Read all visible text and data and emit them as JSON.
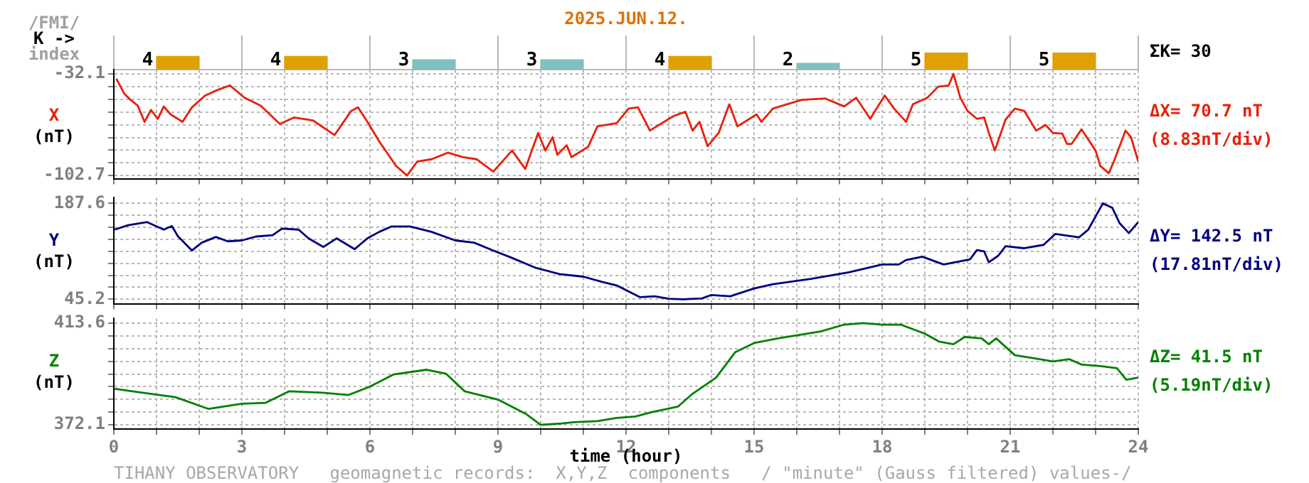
{
  "chart_data": [
    {
      "type": "bar",
      "title": "2025.JUN.12.",
      "ylabel": "/FMI/\nK ->\nindex",
      "annotations": [
        "ΣK= 30"
      ],
      "categories": [
        null,
        null,
        null,
        null,
        null,
        null,
        null,
        null
      ],
      "values": [
        4,
        4,
        3,
        3,
        4,
        2,
        5,
        5
      ],
      "colors": [
        "#e0a000",
        "#e0a000",
        "#80c0c0",
        "#80c0c0",
        "#e0a000",
        "#80c0c0",
        "#e0a000",
        "#e0a000"
      ],
      "data_labels": true,
      "grid": "x",
      "tick_labels": false,
      "legend": false
    },
    {
      "type": "line",
      "ylabel": "X\n(nT)",
      "annotations": [
        "ΔX= 70.7 nT",
        "(8.83nT/div)"
      ],
      "x": [
        0.06,
        0.24,
        0.39,
        0.56,
        0.72,
        0.87,
        1.03,
        1.17,
        1.33,
        1.61,
        1.83,
        2.14,
        2.44,
        2.72,
        3.06,
        3.44,
        3.89,
        4.22,
        4.67,
        5.17,
        5.56,
        5.72,
        5.94,
        6.22,
        6.61,
        6.87,
        7.11,
        7.44,
        7.83,
        8.17,
        8.5,
        8.89,
        9.33,
        9.64,
        9.94,
        10.11,
        10.28,
        10.39,
        10.61,
        10.72,
        11.11,
        11.33,
        11.78,
        12.06,
        12.28,
        12.56,
        12.67,
        13.11,
        13.39,
        13.56,
        13.72,
        13.91,
        14.17,
        14.42,
        14.61,
        15.06,
        15.17,
        15.44,
        16.11,
        16.67,
        17.11,
        17.39,
        17.72,
        18.06,
        18.28,
        18.56,
        18.72,
        19.06,
        19.31,
        19.56,
        19.67,
        19.83,
        20,
        20.22,
        20.39,
        20.5,
        20.64,
        20.89,
        21.11,
        21.33,
        21.61,
        21.83,
        22,
        22.22,
        22.33,
        22.44,
        22.67,
        23,
        23.11,
        23.31,
        23.44,
        23.7,
        23.83,
        24
      ],
      "series": [
        {
          "color": "#e8200a",
          "values": [
            -35.5,
            -45.6,
            -50.1,
            -54.1,
            -65.4,
            -57.1,
            -63.3,
            -54.7,
            -60.2,
            -65.4,
            -55.3,
            -47.1,
            -43.1,
            -40.1,
            -48.6,
            -54.1,
            -66.9,
            -62.4,
            -64.5,
            -74.6,
            -57.8,
            -55.3,
            -65.4,
            -79.1,
            -96.0,
            -102.7,
            -92.9,
            -91.4,
            -86.8,
            -89.9,
            -91.4,
            -100.0,
            -85.3,
            -98.1,
            -73.1,
            -85.3,
            -76.1,
            -88.3,
            -81.6,
            -89.9,
            -82.8,
            -68.5,
            -66.3,
            -56.2,
            -55.3,
            -71.5,
            -69.4,
            -61.4,
            -58.4,
            -71.5,
            -65.4,
            -82.3,
            -73.1,
            -53.2,
            -68.5,
            -60.2,
            -65.4,
            -56.2,
            -50.1,
            -49.2,
            -54.7,
            -48.6,
            -63.3,
            -47.1,
            -56.2,
            -65.4,
            -53.2,
            -48.6,
            -41.0,
            -40.1,
            -32.1,
            -48.6,
            -57.8,
            -63.3,
            -62.4,
            -73.1,
            -85.3,
            -63.9,
            -56.2,
            -57.8,
            -71.5,
            -67.6,
            -73.1,
            -73.6,
            -80.7,
            -80.7,
            -70.6,
            -85.3,
            -96.0,
            -101.1,
            -92.0,
            -71.5,
            -76.1,
            -92.9
          ]
        }
      ],
      "xlim": [
        0,
        24
      ],
      "xticks": [
        0,
        {
          "value": 1,
          "label": null
        },
        {
          "value": 2,
          "label": null
        },
        3,
        {
          "value": 4,
          "label": null
        },
        {
          "value": 5,
          "label": null
        },
        6,
        {
          "value": 7,
          "label": null
        },
        {
          "value": 8,
          "label": null
        },
        9,
        {
          "value": 10,
          "label": null
        },
        {
          "value": 11,
          "label": null
        },
        12,
        {
          "value": 13,
          "label": null
        },
        {
          "value": 14,
          "label": null
        },
        15,
        {
          "value": 16,
          "label": null
        },
        {
          "value": 17,
          "label": null
        },
        18,
        {
          "value": 19,
          "label": null
        },
        {
          "value": 20,
          "label": null
        },
        21,
        {
          "value": 22,
          "label": null
        },
        {
          "value": 23,
          "label": null
        },
        24
      ],
      "ylim": [
        -104.9,
        -29.3
      ],
      "yticks": [
        -32.1,
        {
          "value": -40.93,
          "label": null
        },
        {
          "value": -49.75,
          "label": null
        },
        {
          "value": -58.58,
          "label": null
        },
        {
          "value": -67.4,
          "label": null
        },
        {
          "value": -76.23,
          "label": null
        },
        {
          "value": -85.05,
          "label": null
        },
        {
          "value": -93.88,
          "label": null
        },
        -102.7
      ],
      "grid": true,
      "tick_labels": "y",
      "marker": "none",
      "legend": false
    },
    {
      "type": "line",
      "ylabel": "Y\n(nT)",
      "annotations": [
        "ΔY= 142.5 nT",
        "(17.81nT/div)"
      ],
      "x": [
        0.02,
        0.33,
        0.78,
        1.17,
        1.36,
        1.5,
        1.83,
        2.06,
        2.39,
        2.67,
        3,
        3.33,
        3.72,
        3.94,
        4.33,
        4.56,
        4.91,
        5.22,
        5.64,
        5.94,
        6.22,
        6.5,
        6.94,
        7.44,
        8,
        8.44,
        8.89,
        9.33,
        9.89,
        10.44,
        11,
        11.44,
        11.78,
        12.33,
        12.67,
        13,
        13.33,
        13.78,
        14,
        14.44,
        15,
        15.44,
        16.33,
        17.22,
        18,
        18.39,
        18.56,
        18.94,
        19.44,
        20.06,
        20.22,
        20.39,
        20.5,
        20.72,
        20.89,
        21.33,
        21.78,
        22.06,
        22.61,
        22.83,
        23.17,
        23.39,
        23.56,
        23.78,
        24
      ],
      "series": [
        {
          "color": "#000080",
          "values": [
            148.7,
            155.2,
            159.8,
            148.7,
            154.0,
            139.0,
            117.6,
            129.3,
            137.7,
            131.3,
            132.6,
            138.4,
            140.4,
            150.1,
            148.7,
            135.7,
            122.9,
            135.7,
            119.6,
            135.7,
            145.4,
            153.2,
            153.2,
            145.4,
            132.6,
            129.3,
            117.6,
            106.6,
            91.8,
            82.7,
            78.8,
            71.0,
            65.8,
            48.3,
            49.6,
            46.0,
            45.2,
            46.5,
            51.6,
            49.6,
            61.3,
            67.7,
            75.5,
            85.2,
            96.9,
            96.9,
            103.4,
            108.5,
            96.9,
            104.6,
            118.2,
            116.3,
            100.2,
            109.9,
            124.1,
            121.0,
            126.0,
            142.3,
            137.1,
            148.7,
            187.6,
            181.2,
            158.5,
            143.5,
            159.8
          ]
        }
      ],
      "xlim": [
        0,
        24
      ],
      "xticks": [
        0,
        {
          "value": 1,
          "label": null
        },
        {
          "value": 2,
          "label": null
        },
        3,
        {
          "value": 4,
          "label": null
        },
        {
          "value": 5,
          "label": null
        },
        6,
        {
          "value": 7,
          "label": null
        },
        {
          "value": 8,
          "label": null
        },
        9,
        {
          "value": 10,
          "label": null
        },
        {
          "value": 11,
          "label": null
        },
        12,
        {
          "value": 13,
          "label": null
        },
        {
          "value": 14,
          "label": null
        },
        15,
        {
          "value": 16,
          "label": null
        },
        {
          "value": 17,
          "label": null
        },
        18,
        {
          "value": 19,
          "label": null
        },
        {
          "value": 20,
          "label": null
        },
        21,
        {
          "value": 22,
          "label": null
        },
        {
          "value": 23,
          "label": null
        },
        24
      ],
      "ylim": [
        38.6,
        196.0
      ],
      "yticks": [
        187.6,
        {
          "value": 169.8,
          "label": null
        },
        {
          "value": 152,
          "label": null
        },
        {
          "value": 134.2,
          "label": null
        },
        {
          "value": 116.4,
          "label": null
        },
        {
          "value": 98.6,
          "label": null
        },
        {
          "value": 80.8,
          "label": null
        },
        {
          "value": 63,
          "label": null
        },
        45.2
      ],
      "grid": true,
      "tick_labels": "y",
      "marker": "none",
      "legend": false
    },
    {
      "type": "line",
      "ylabel": "Z\n(nT)",
      "xlabel": "time (hour)",
      "annotations": [
        "ΔZ= 41.5 nT",
        "(5.19nT/div)",
        "TIHANY OBSERVATORY   geomagnetic records:  X,Y,Z  components   / \"minute\" (Gauss filtered) values-/"
      ],
      "x": [
        0.02,
        0.67,
        1.44,
        2.22,
        3,
        3.56,
        4.11,
        4.89,
        5.5,
        6,
        6.56,
        7.33,
        7.78,
        8.22,
        9,
        9.67,
        10,
        10.5,
        10.78,
        11.33,
        11.78,
        12.22,
        12.61,
        13.22,
        13.56,
        14.11,
        14.56,
        15,
        15.56,
        16.56,
        17.11,
        17.56,
        18,
        18.44,
        19,
        19.33,
        19.67,
        19.94,
        20.33,
        20.5,
        20.67,
        21.11,
        21.56,
        22,
        22.39,
        22.67,
        23.11,
        23.5,
        23.72,
        24
      ],
      "series": [
        {
          "color": "#008000",
          "values": [
            386.8,
            385.2,
            383.4,
            378.6,
            380.7,
            381.1,
            385.8,
            385.2,
            384.3,
            387.7,
            392.7,
            394.6,
            393.0,
            385.8,
            382.4,
            376.4,
            372.1,
            372.7,
            373.2,
            373.6,
            374.9,
            375.5,
            377.3,
            379.6,
            384.8,
            391.4,
            401.8,
            405.5,
            407.4,
            410.2,
            413.0,
            413.6,
            413.0,
            413.0,
            409.3,
            406.1,
            405.0,
            408.0,
            407.4,
            405.0,
            407.4,
            400.5,
            399.3,
            398.0,
            398.9,
            396.7,
            396.1,
            395.2,
            390.5,
            391.4
          ]
        }
      ],
      "xlim": [
        0,
        24
      ],
      "xticks": [
        0,
        {
          "value": 1,
          "label": null
        },
        {
          "value": 2,
          "label": null
        },
        3,
        {
          "value": 4,
          "label": null
        },
        {
          "value": 5,
          "label": null
        },
        6,
        {
          "value": 7,
          "label": null
        },
        {
          "value": 8,
          "label": null
        },
        9,
        {
          "value": 10,
          "label": null
        },
        {
          "value": 11,
          "label": null
        },
        12,
        {
          "value": 13,
          "label": null
        },
        {
          "value": 14,
          "label": null
        },
        15,
        {
          "value": 16,
          "label": null
        },
        {
          "value": 17,
          "label": null
        },
        18,
        {
          "value": 19,
          "label": null
        },
        {
          "value": 20,
          "label": null
        },
        21,
        {
          "value": 22,
          "label": null
        },
        {
          "value": 23,
          "label": null
        },
        24
      ],
      "ylim": [
        370.4,
        415.5
      ],
      "yticks": [
        413.6,
        {
          "value": 408.41,
          "label": null
        },
        {
          "value": 403.23,
          "label": null
        },
        {
          "value": 398.04,
          "label": null
        },
        {
          "value": 392.85,
          "label": null
        },
        {
          "value": 387.66,
          "label": null
        },
        {
          "value": 382.48,
          "label": null
        },
        {
          "value": 377.29,
          "label": null
        },
        372.1
      ],
      "grid": true,
      "marker": "none",
      "legend": false
    }
  ]
}
